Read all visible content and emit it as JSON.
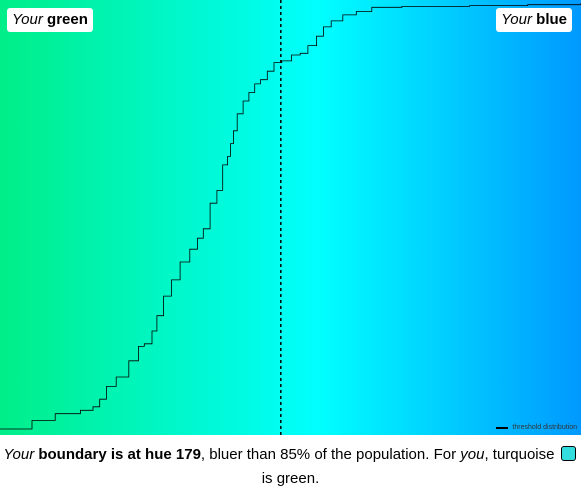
{
  "labels": {
    "green_prefix": "Your",
    "green_word": "green",
    "blue_prefix": "Your",
    "blue_word": "blue"
  },
  "legend": {
    "text": "threshold distribution"
  },
  "caption": {
    "prefix": "Your",
    "bold": "boundary is at hue 179",
    "middle": ", bluer than 85% of the population. For ",
    "you": "you",
    "color_name": ", turquoise",
    "end": "is green."
  },
  "colors": {
    "hue_start": "#00ee88",
    "hue_mid": "#00ffff",
    "hue_end": "#0099ff",
    "swatch": "#33dddd",
    "line": "#000000"
  },
  "chart_data": {
    "type": "line",
    "title": "",
    "xlabel": "",
    "ylabel": "",
    "xlim": [
      150,
      210
    ],
    "ylim": [
      0,
      1
    ],
    "threshold_x": 179,
    "series": [
      {
        "name": "threshold distribution",
        "x": [
          150,
          153.3,
          155.7,
          158.3,
          159.6,
          160.3,
          161,
          162,
          163.3,
          164.3,
          164.9,
          165.7,
          166.2,
          166.9,
          167.7,
          168.6,
          169.6,
          170.4,
          171,
          171.7,
          172.4,
          173,
          173.5,
          173.8,
          174.1,
          174.5,
          175.1,
          175.7,
          176.3,
          176.9,
          177.6,
          178.3,
          179.1,
          180.1,
          181,
          181.8,
          182.7,
          183.4,
          184.2,
          185.4,
          186.8,
          188.4,
          191.5,
          198.5,
          204.5,
          210
        ],
        "y": [
          0,
          0.02,
          0.036,
          0.044,
          0.052,
          0.07,
          0.1,
          0.122,
          0.16,
          0.194,
          0.2,
          0.23,
          0.266,
          0.312,
          0.35,
          0.392,
          0.422,
          0.448,
          0.47,
          0.53,
          0.56,
          0.62,
          0.64,
          0.67,
          0.7,
          0.74,
          0.77,
          0.79,
          0.81,
          0.82,
          0.84,
          0.86,
          0.864,
          0.878,
          0.882,
          0.9,
          0.922,
          0.944,
          0.958,
          0.972,
          0.98,
          0.99,
          0.992,
          0.994,
          0.996,
          1
        ]
      }
    ]
  }
}
